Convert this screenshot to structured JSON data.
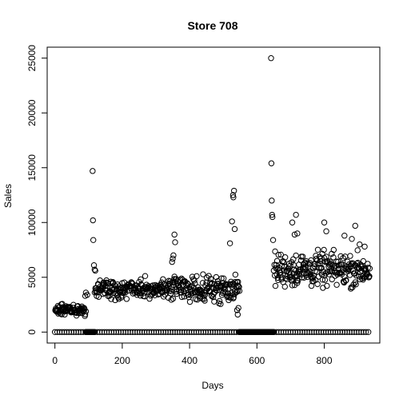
{
  "chart_data": {
    "type": "scatter",
    "title": "Store 708",
    "xlabel": "Days",
    "ylabel": "Sales",
    "xlim": [
      -23,
      965
    ],
    "ylim": [
      -1000,
      26000
    ],
    "xticks": [
      0,
      200,
      400,
      600,
      800
    ],
    "yticks": [
      0,
      5000,
      10000,
      15000,
      20000,
      25000
    ],
    "grid": false,
    "legend": "none",
    "marker": "open-circle",
    "point_color": "#000000",
    "segments": [
      {
        "x_start": 0,
        "x_end": 92,
        "base": 2000,
        "amplitude": 500
      },
      {
        "x_start": 118,
        "x_end": 350,
        "base": 3900,
        "amplitude": 850
      },
      {
        "x_start": 350,
        "x_end": 548,
        "base": 4000,
        "amplitude": 1100
      },
      {
        "x_start": 650,
        "x_end": 935,
        "base": 5700,
        "amplitude": 1500
      }
    ],
    "zero_days": {
      "start": 0,
      "end": 935,
      "step": 7,
      "dense_ranges": [
        [
          92,
          118
        ],
        [
          548,
          650
        ]
      ]
    },
    "highlight_points": [
      [
        90,
        3300
      ],
      [
        92,
        3600
      ],
      [
        96,
        3400
      ],
      [
        112,
        14700
      ],
      [
        113,
        10200
      ],
      [
        114,
        8400
      ],
      [
        116,
        6100
      ],
      [
        118,
        5700
      ],
      [
        120,
        5600
      ],
      [
        348,
        6400
      ],
      [
        350,
        6700
      ],
      [
        352,
        7000
      ],
      [
        355,
        8900
      ],
      [
        357,
        8200
      ],
      [
        520,
        8100
      ],
      [
        526,
        10100
      ],
      [
        529,
        12500
      ],
      [
        530,
        12300
      ],
      [
        532,
        12900
      ],
      [
        534,
        9400
      ],
      [
        541,
        2000
      ],
      [
        543,
        1600
      ],
      [
        545,
        2200
      ],
      [
        642,
        25000
      ],
      [
        643,
        15400
      ],
      [
        644,
        12000
      ],
      [
        645,
        10700
      ],
      [
        646,
        10500
      ],
      [
        648,
        8400
      ],
      [
        705,
        10000
      ],
      [
        712,
        8900
      ],
      [
        716,
        10700
      ],
      [
        720,
        9000
      ],
      [
        800,
        10000
      ],
      [
        806,
        9200
      ],
      [
        860,
        8800
      ],
      [
        882,
        8500
      ],
      [
        892,
        9700
      ],
      [
        905,
        8000
      ],
      [
        920,
        7800
      ]
    ]
  }
}
